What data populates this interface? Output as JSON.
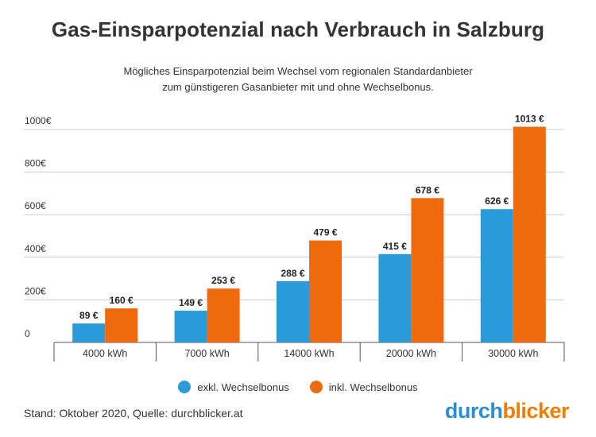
{
  "title": "Gas-Einsparpotenzial nach Verbrauch in Salzburg",
  "subtitle_line1": "Mögliches Einsparpotenzial beim Wechsel vom regionalen Standardanbieter",
  "subtitle_line2": "zum günstigeren Gasanbieter mit und ohne Wechselbonus.",
  "footer": "Stand: Oktober 2020, Quelle: durchblicker.at",
  "logo": {
    "part1": "durch",
    "part2": "blicker"
  },
  "colors": {
    "blue": "#2a9ad8",
    "orange": "#ef6a0d",
    "grid": "#cccccc",
    "axis": "#555555"
  },
  "chart_data": {
    "type": "bar",
    "categories": [
      "4000 kWh",
      "7000 kWh",
      "14000 kWh",
      "20000 kWh",
      "30000 kWh"
    ],
    "series": [
      {
        "name": "exkl. Wechselbonus",
        "values": [
          89,
          149,
          288,
          415,
          626
        ],
        "labels": [
          "89 €",
          "149 €",
          "288 €",
          "415 €",
          "626 €"
        ]
      },
      {
        "name": "inkl. Wechselbonus",
        "values": [
          160,
          253,
          479,
          678,
          1013
        ],
        "labels": [
          "160 €",
          "253 €",
          "479 €",
          "678 €",
          "1013 €"
        ]
      }
    ],
    "y_ticks": [
      0,
      200,
      400,
      600,
      800,
      1000
    ],
    "y_tick_labels": [
      "0",
      "200€",
      "400€",
      "600€",
      "800€",
      "1000€"
    ],
    "ylim": [
      0,
      1000
    ],
    "grid": true,
    "legend_position": "bottom-center"
  }
}
